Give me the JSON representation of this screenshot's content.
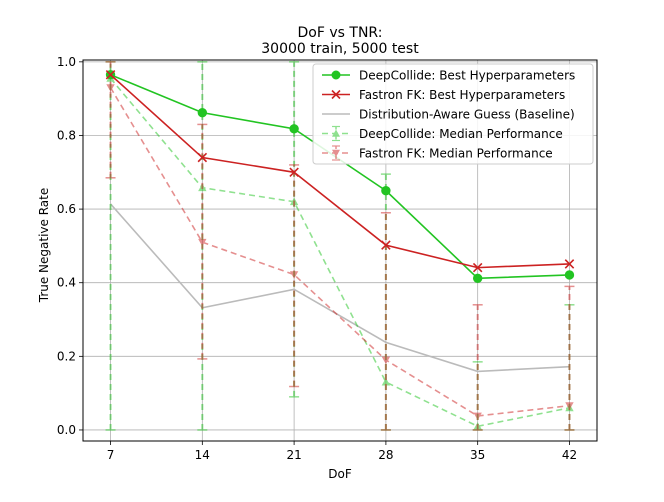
{
  "chart_data": {
    "type": "line",
    "title_line1": "DoF vs TNR:",
    "title_line2": "30000 train, 5000 test",
    "xlabel": "DoF",
    "ylabel": "True Negative Rate",
    "x": [
      7,
      14,
      21,
      28,
      35,
      42
    ],
    "xlim": [
      4.9,
      44.1
    ],
    "ylim": [
      -0.03,
      1.005
    ],
    "xticks": [
      7,
      14,
      21,
      28,
      35,
      42
    ],
    "yticks": [
      0.0,
      0.2,
      0.4,
      0.6,
      0.8,
      1.0
    ],
    "ytick_labels": [
      "0.0",
      "0.2",
      "0.4",
      "0.6",
      "0.8",
      "1.0"
    ],
    "grid": true,
    "legend_position": "upper right",
    "series": [
      {
        "name": "DeepCollide: Best Hyperparameters",
        "color": "#22c422",
        "marker": "circle",
        "dashed": false,
        "alpha": 1,
        "values": [
          0.965,
          0.862,
          0.818,
          0.65,
          0.412,
          0.421
        ]
      },
      {
        "name": "Fastron FK: Best Hyperparameters",
        "color": "#cc2222",
        "marker": "x",
        "dashed": false,
        "alpha": 1,
        "values": [
          0.965,
          0.74,
          0.7,
          0.502,
          0.441,
          0.451
        ]
      },
      {
        "name": "Distribution-Aware Guess (Baseline)",
        "color": "#bbbbbb",
        "marker": "none",
        "dashed": false,
        "alpha": 1,
        "values": [
          0.614,
          0.332,
          0.382,
          0.238,
          0.159,
          0.172
        ]
      },
      {
        "name": "DeepCollide: Median Performance",
        "color": "#22c422",
        "marker": "triangle-up",
        "dashed": true,
        "alpha": 0.5,
        "values": [
          0.955,
          0.658,
          0.62,
          0.13,
          0.01,
          0.06
        ],
        "err_low": [
          0.0,
          0.0,
          0.09,
          0.0,
          0.0,
          0.0
        ],
        "err_high": [
          1.0,
          1.0,
          1.0,
          0.695,
          0.185,
          0.34
        ]
      },
      {
        "name": "Fastron FK: Median Performance",
        "color": "#cc2222",
        "marker": "triangle-down",
        "dashed": true,
        "alpha": 0.5,
        "values": [
          0.93,
          0.51,
          0.422,
          0.19,
          0.038,
          0.066
        ],
        "err_low": [
          0.685,
          0.193,
          0.118,
          0.0,
          0.0,
          0.0
        ],
        "err_high": [
          1.0,
          0.83,
          0.72,
          0.59,
          0.34,
          0.39
        ]
      }
    ]
  }
}
